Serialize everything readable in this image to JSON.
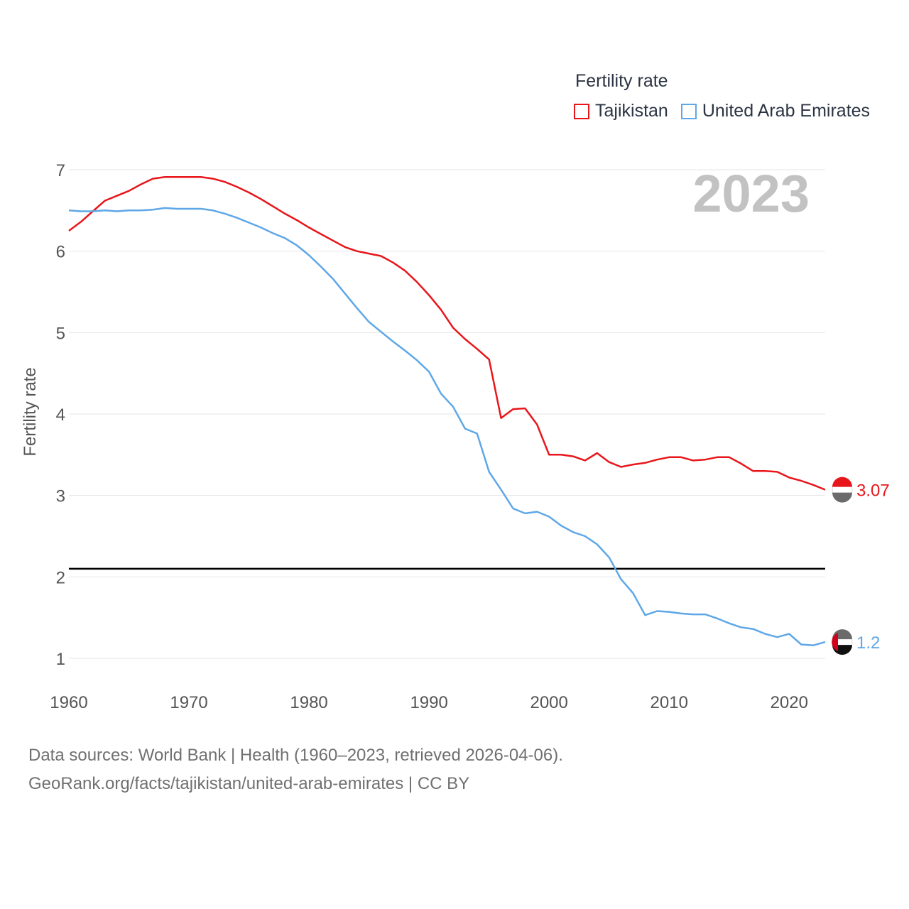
{
  "legend": {
    "title": "Fertility rate",
    "items": [
      {
        "label": "Tajikistan",
        "color": "#e8161b"
      },
      {
        "label": "United Arab Emirates",
        "color": "#5fa7e6"
      }
    ]
  },
  "footer": {
    "line1": "Data sources: World Bank | Health (1960–2023, retrieved 2026-04-06).",
    "line2": "GeoRank.org/facts/tajikistan/united-arab-emirates | CC BY"
  },
  "chart_data": {
    "type": "line",
    "title": "Fertility rate",
    "year_label": "2023",
    "xlabel": "",
    "ylabel": "Fertility rate",
    "xlim": [
      1960,
      2023
    ],
    "ylim": [
      1,
      7
    ],
    "x_ticks": [
      1960,
      1970,
      1980,
      1990,
      2000,
      2010,
      2020
    ],
    "y_ticks": [
      1,
      2,
      3,
      4,
      5,
      6,
      7
    ],
    "reference_line": {
      "y": 2.1,
      "color": "#000000"
    },
    "x": [
      1960,
      1961,
      1962,
      1963,
      1964,
      1965,
      1966,
      1967,
      1968,
      1969,
      1970,
      1971,
      1972,
      1973,
      1974,
      1975,
      1976,
      1977,
      1978,
      1979,
      1980,
      1981,
      1982,
      1983,
      1984,
      1985,
      1986,
      1987,
      1988,
      1989,
      1990,
      1991,
      1992,
      1993,
      1994,
      1995,
      1996,
      1997,
      1998,
      1999,
      2000,
      2001,
      2002,
      2003,
      2004,
      2005,
      2006,
      2007,
      2008,
      2009,
      2010,
      2011,
      2012,
      2013,
      2014,
      2015,
      2016,
      2017,
      2018,
      2019,
      2020,
      2021,
      2022,
      2023
    ],
    "series": [
      {
        "name": "Tajikistan",
        "color": "#e8161b",
        "end_label": "3.07",
        "values": [
          6.25,
          6.36,
          6.49,
          6.62,
          6.68,
          6.74,
          6.82,
          6.89,
          6.91,
          6.91,
          6.91,
          6.91,
          6.89,
          6.85,
          6.79,
          6.72,
          6.64,
          6.55,
          6.46,
          6.38,
          6.29,
          6.21,
          6.13,
          6.05,
          6.0,
          5.97,
          5.94,
          5.86,
          5.76,
          5.62,
          5.46,
          5.28,
          5.06,
          4.92,
          4.8,
          4.67,
          3.95,
          4.06,
          4.07,
          3.87,
          3.5,
          3.5,
          3.48,
          3.43,
          3.52,
          3.41,
          3.35,
          3.38,
          3.4,
          3.44,
          3.47,
          3.47,
          3.43,
          3.44,
          3.47,
          3.47,
          3.39,
          3.3,
          3.3,
          3.29,
          3.22,
          3.18,
          3.13,
          3.07
        ]
      },
      {
        "name": "United Arab Emirates",
        "color": "#5fa7e6",
        "end_label": "1.2",
        "values": [
          6.5,
          6.49,
          6.49,
          6.5,
          6.49,
          6.5,
          6.5,
          6.51,
          6.53,
          6.52,
          6.52,
          6.52,
          6.5,
          6.46,
          6.41,
          6.35,
          6.29,
          6.22,
          6.16,
          6.07,
          5.95,
          5.81,
          5.66,
          5.48,
          5.3,
          5.13,
          5.01,
          4.89,
          4.78,
          4.66,
          4.52,
          4.25,
          4.09,
          3.82,
          3.76,
          3.29,
          3.07,
          2.84,
          2.78,
          2.8,
          2.74,
          2.63,
          2.55,
          2.5,
          2.4,
          2.24,
          1.97,
          1.8,
          1.53,
          1.58,
          1.57,
          1.55,
          1.54,
          1.54,
          1.49,
          1.43,
          1.38,
          1.36,
          1.3,
          1.26,
          1.3,
          1.17,
          1.16,
          1.2
        ]
      }
    ]
  }
}
